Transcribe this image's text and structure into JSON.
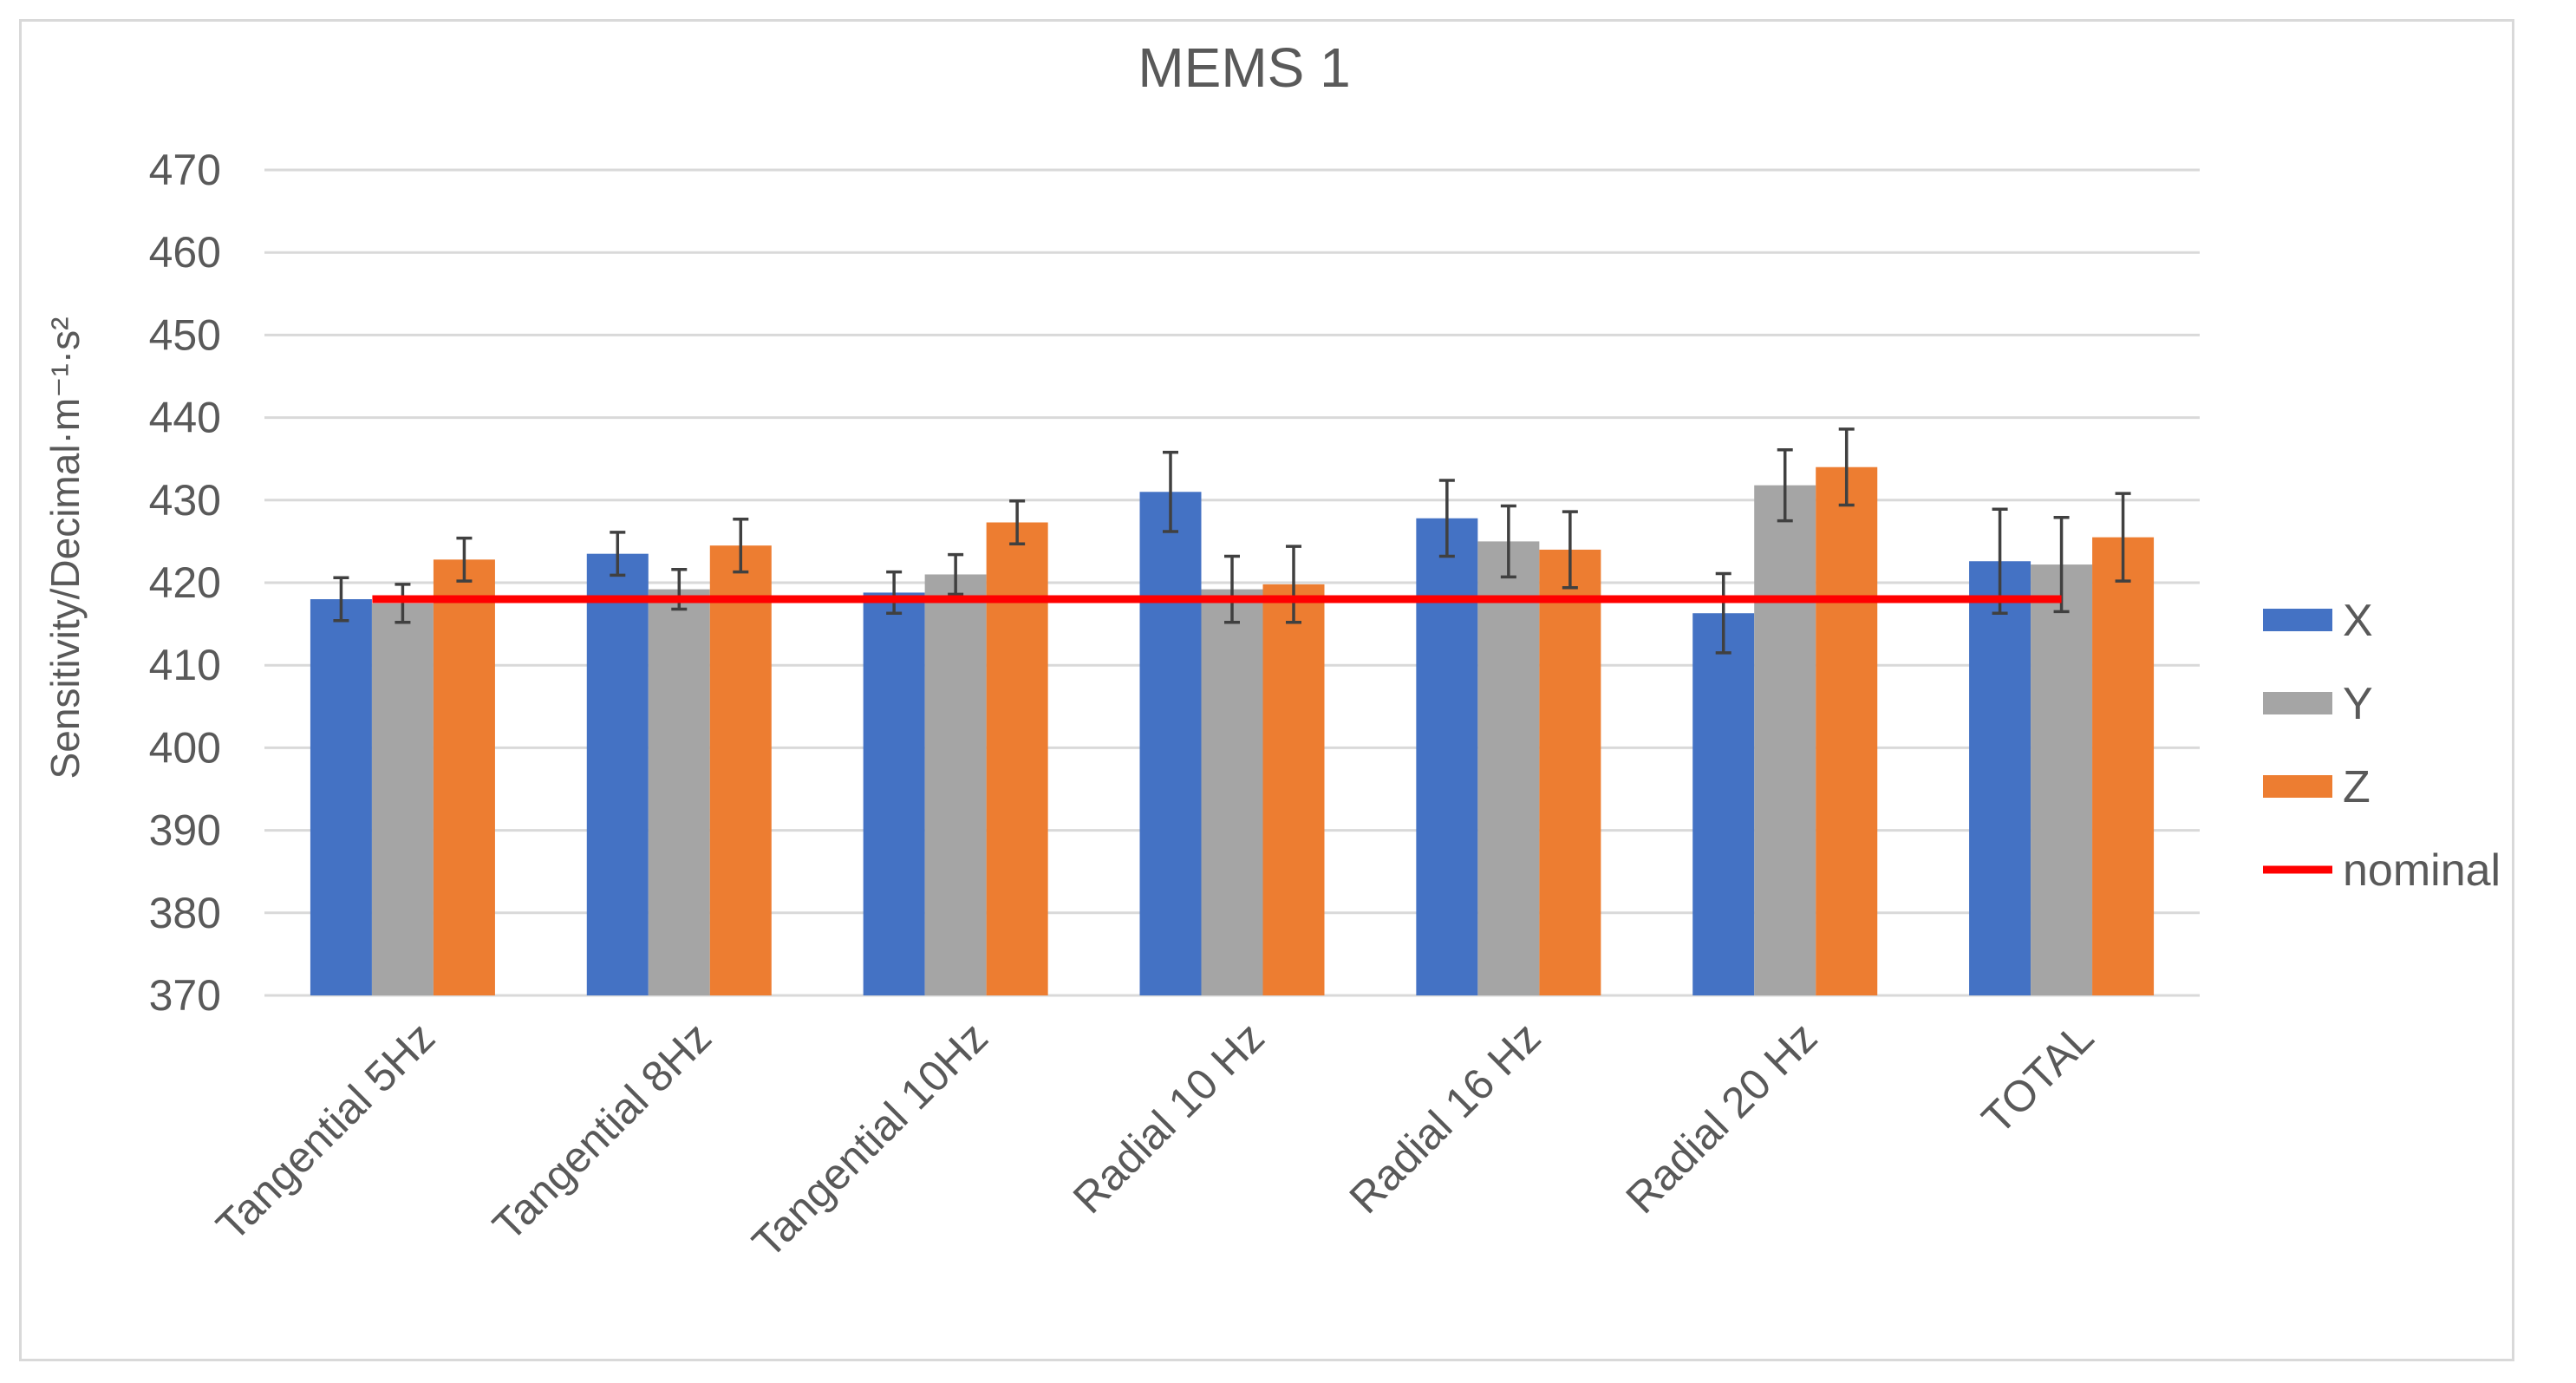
{
  "chart_data": {
    "type": "bar",
    "title": "MEMS 1",
    "ylabel": "Sensitivity/Decimal·m⁻¹·s²",
    "xlabel": "",
    "ylim": [
      370,
      470
    ],
    "yticks": [
      370,
      380,
      390,
      400,
      410,
      420,
      430,
      440,
      450,
      460,
      470
    ],
    "grid": true,
    "legend_position": "right",
    "categories": [
      "Tangential 5Hz",
      "Tangential 8Hz",
      "Tangential 10Hz",
      "Radial 10 Hz",
      "Radial 16 Hz",
      "Radial 20 Hz",
      "TOTAL"
    ],
    "series": [
      {
        "name": "X",
        "color": "#4472c4",
        "values": [
          418,
          423.5,
          418.8,
          431,
          427.8,
          416.3,
          422.6
        ],
        "errors": [
          2.6,
          2.6,
          2.5,
          4.8,
          4.6,
          4.8,
          6.3
        ]
      },
      {
        "name": "Y",
        "color": "#a5a5a5",
        "values": [
          417.5,
          419.2,
          421,
          419.2,
          425,
          431.8,
          422.2
        ],
        "errors": [
          2.3,
          2.4,
          2.4,
          4.0,
          4.3,
          4.3,
          5.7
        ]
      },
      {
        "name": "Z",
        "color": "#ed7d31",
        "values": [
          422.8,
          424.5,
          427.3,
          419.8,
          424,
          434,
          425.5
        ],
        "errors": [
          2.6,
          3.2,
          2.6,
          4.6,
          4.6,
          4.6,
          5.3
        ]
      }
    ],
    "nominal": {
      "name": "nominal",
      "color": "#ff0000",
      "value": 418
    }
  }
}
